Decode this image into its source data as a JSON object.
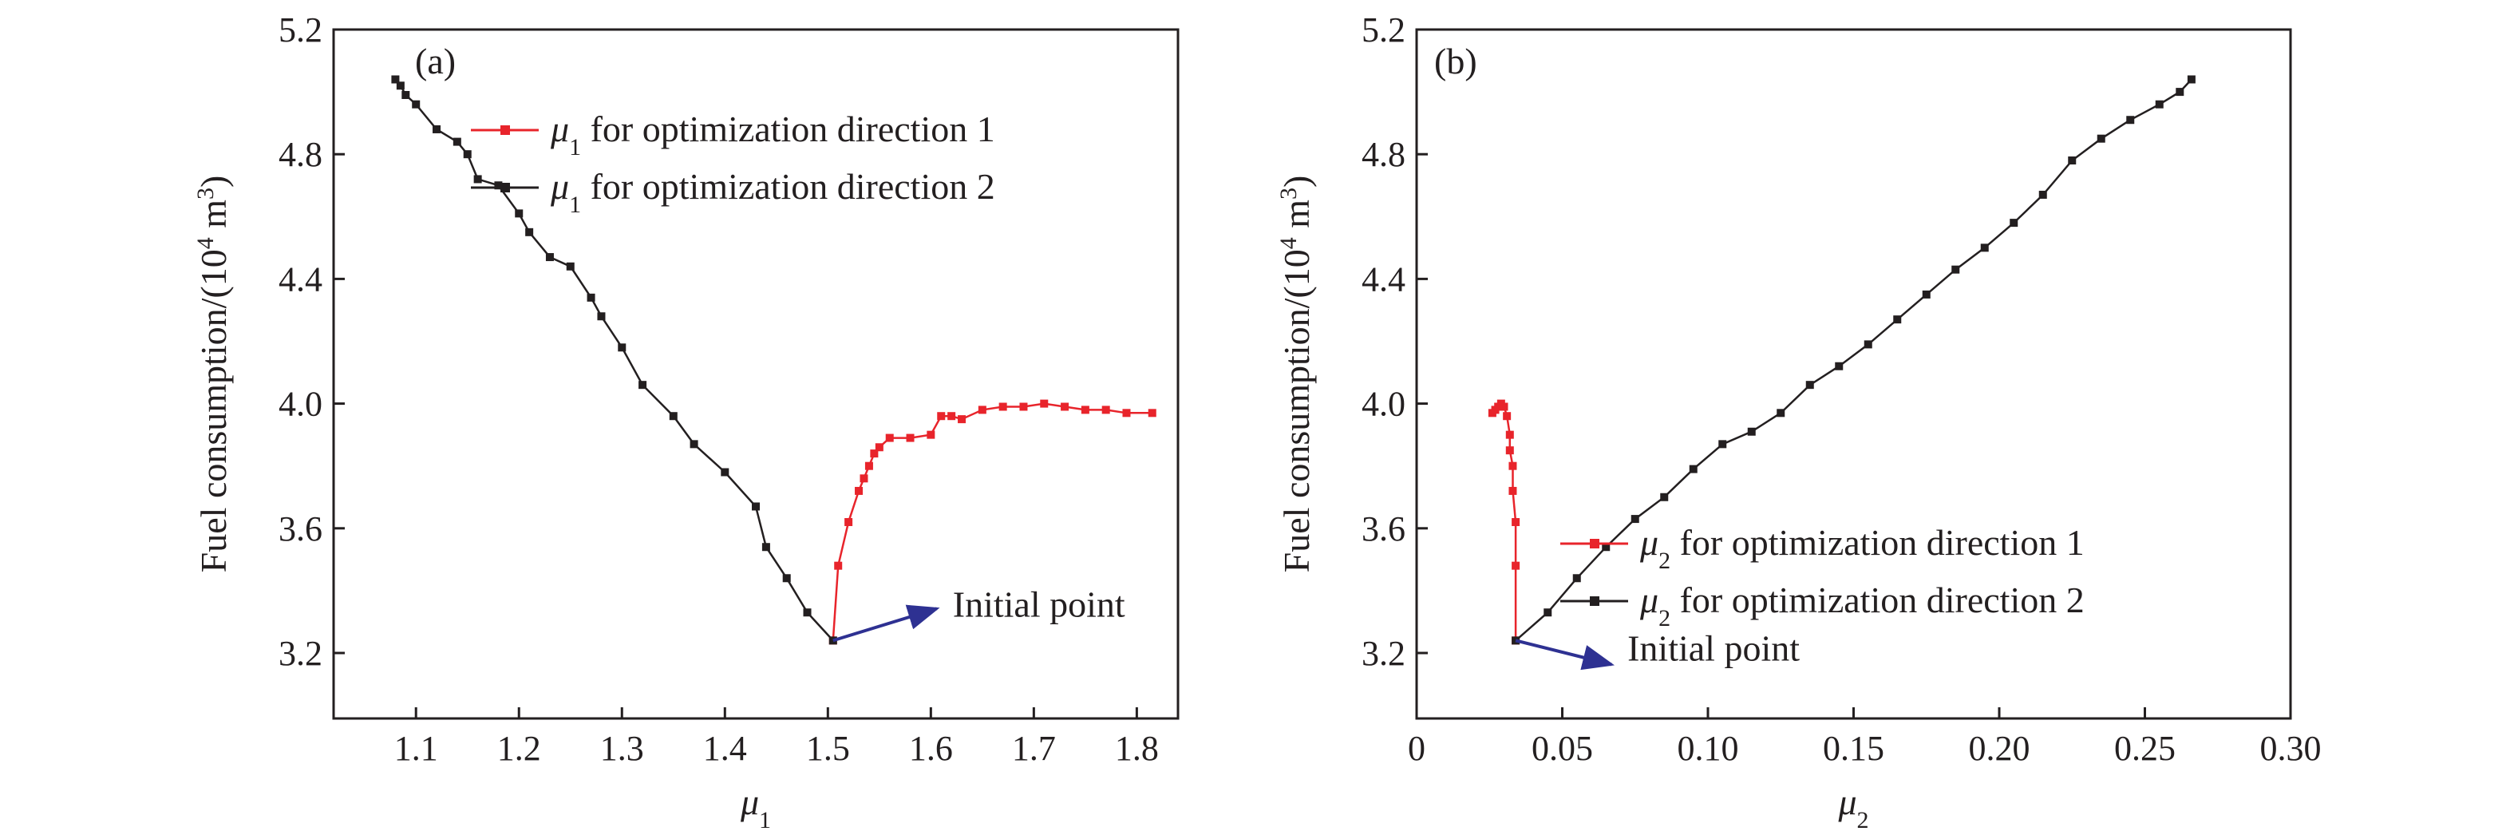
{
  "chart_data": [
    {
      "type": "line",
      "panel_label": "(a)",
      "xlabel": "μ1",
      "xlabel_symbol": "μ",
      "xlabel_sub": "1",
      "ylabel": "Fuel consumption/(10⁴ m³)",
      "ylabel_prefix": "Fuel consumption/(10",
      "ylabel_exp": "4",
      "ylabel_mid": " m",
      "ylabel_exp2": "3",
      "ylabel_suffix": ")",
      "xlim": [
        1.02,
        1.84
      ],
      "ylim": [
        2.99,
        5.2
      ],
      "xticks": [
        "1.1",
        "1.2",
        "1.3",
        "1.4",
        "1.5",
        "1.6",
        "1.7",
        "1.8"
      ],
      "yticks": [
        "3.2",
        "3.6",
        "4.0",
        "4.4",
        "4.8",
        "5.2"
      ],
      "legend_position": "top-right",
      "annotation": {
        "text": "Initial point",
        "x": 1.505,
        "y": 3.24
      },
      "series": [
        {
          "name": "μ1 for optimization direction 1",
          "name_symbol": "μ",
          "name_sub": "1",
          "name_rest": " for optimization direction 1",
          "color": "#e8242b",
          "x": [
            1.505,
            1.51,
            1.52,
            1.53,
            1.535,
            1.54,
            1.545,
            1.55,
            1.56,
            1.58,
            1.6,
            1.61,
            1.62,
            1.63,
            1.65,
            1.67,
            1.69,
            1.71,
            1.73,
            1.75,
            1.77,
            1.79,
            1.815
          ],
          "y": [
            3.24,
            3.48,
            3.62,
            3.72,
            3.76,
            3.8,
            3.84,
            3.86,
            3.89,
            3.89,
            3.9,
            3.96,
            3.96,
            3.95,
            3.98,
            3.99,
            3.99,
            4.0,
            3.99,
            3.98,
            3.98,
            3.97,
            3.97
          ]
        },
        {
          "name": "μ1 for optimization direction 2",
          "name_symbol": "μ",
          "name_sub": "1",
          "name_rest": " for optimization direction 2",
          "color": "#231f20",
          "x": [
            1.505,
            1.48,
            1.46,
            1.44,
            1.43,
            1.4,
            1.37,
            1.35,
            1.32,
            1.3,
            1.28,
            1.27,
            1.25,
            1.23,
            1.21,
            1.2,
            1.18,
            1.16,
            1.15,
            1.14,
            1.12,
            1.1,
            1.09,
            1.085,
            1.08
          ],
          "y": [
            3.24,
            3.33,
            3.44,
            3.54,
            3.67,
            3.78,
            3.87,
            3.96,
            4.06,
            4.18,
            4.28,
            4.34,
            4.44,
            4.47,
            4.55,
            4.61,
            4.7,
            4.72,
            4.8,
            4.84,
            4.88,
            4.96,
            4.99,
            5.02,
            5.04
          ]
        }
      ]
    },
    {
      "type": "line",
      "panel_label": "(b)",
      "xlabel": "μ2",
      "xlabel_symbol": "μ",
      "xlabel_sub": "2",
      "ylabel": "Fuel consumption/(10⁴ m³)",
      "ylabel_prefix": "Fuel consumption/(10",
      "ylabel_exp": "4",
      "ylabel_mid": " m",
      "ylabel_exp2": "3",
      "ylabel_suffix": ")",
      "xlim": [
        0,
        0.3
      ],
      "ylim": [
        2.99,
        5.2
      ],
      "xticks": [
        "0",
        "0.05",
        "0.10",
        "0.15",
        "0.20",
        "0.25",
        "0.30"
      ],
      "yticks": [
        "3.2",
        "3.6",
        "4.0",
        "4.4",
        "4.8",
        "5.2"
      ],
      "legend_position": "lower-right",
      "annotation": {
        "text": "Initial point",
        "x": 0.034,
        "y": 3.24
      },
      "series": [
        {
          "name": "μ2 for optimization direction 1",
          "name_symbol": "μ",
          "name_sub": "2",
          "name_rest": " for optimization direction 1",
          "color": "#e8242b",
          "x": [
            0.034,
            0.034,
            0.034,
            0.033,
            0.033,
            0.032,
            0.032,
            0.031,
            0.03,
            0.029,
            0.028,
            0.027,
            0.026
          ],
          "y": [
            3.24,
            3.48,
            3.62,
            3.72,
            3.8,
            3.85,
            3.9,
            3.96,
            3.99,
            4.0,
            3.99,
            3.98,
            3.97
          ]
        },
        {
          "name": "μ2 for optimization direction 2",
          "name_symbol": "μ",
          "name_sub": "2",
          "name_rest": " for optimization direction 2",
          "color": "#231f20",
          "x": [
            0.034,
            0.045,
            0.055,
            0.065,
            0.075,
            0.085,
            0.095,
            0.105,
            0.115,
            0.125,
            0.135,
            0.145,
            0.155,
            0.165,
            0.175,
            0.185,
            0.195,
            0.205,
            0.215,
            0.225,
            0.235,
            0.245,
            0.255,
            0.262,
            0.266
          ],
          "y": [
            3.24,
            3.33,
            3.44,
            3.54,
            3.63,
            3.7,
            3.79,
            3.87,
            3.91,
            3.97,
            4.06,
            4.12,
            4.19,
            4.27,
            4.35,
            4.43,
            4.5,
            4.58,
            4.67,
            4.78,
            4.85,
            4.91,
            4.96,
            5.0,
            5.04
          ]
        }
      ]
    }
  ]
}
